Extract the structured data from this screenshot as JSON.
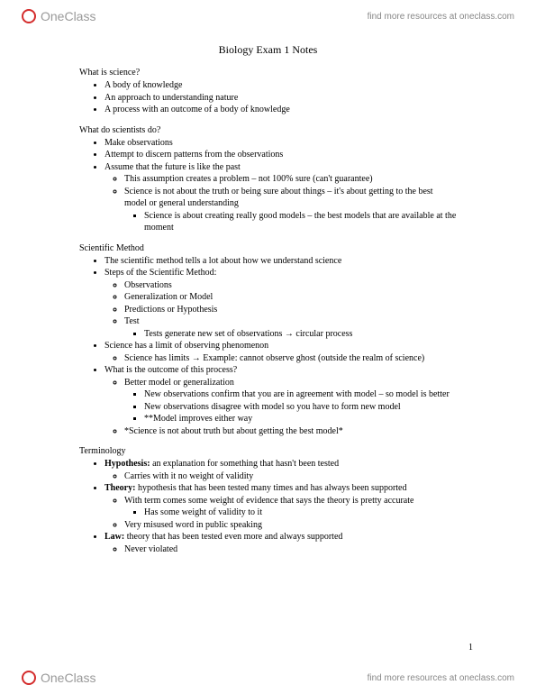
{
  "brand": {
    "name": "OneClass",
    "tagline": "find more resources at oneclass.com"
  },
  "title": "Biology Exam 1 Notes",
  "page_number": "1",
  "sections": [
    {
      "heading": "What is science?",
      "items": [
        {
          "t": "A body of knowledge"
        },
        {
          "t": "An approach to understanding nature"
        },
        {
          "t": "A process with an outcome of a body of knowledge"
        }
      ]
    },
    {
      "heading": "What do scientists do?",
      "items": [
        {
          "t": "Make observations"
        },
        {
          "t": "Attempt to discern patterns from the observations"
        },
        {
          "t": "Assume that the future is like the past",
          "sub": [
            {
              "t": "This assumption creates a problem – not 100% sure (can't guarantee)"
            },
            {
              "t": "Science is not about the truth or being sure about things – it's about getting to the best model or general understanding",
              "sub": [
                {
                  "t": "Science is about creating really good models – the best models that are available at the moment"
                }
              ]
            }
          ]
        }
      ]
    },
    {
      "heading": "Scientific Method",
      "items": [
        {
          "t": "The scientific method tells a lot about how we understand science"
        },
        {
          "t": "Steps of the Scientific Method:",
          "sub": [
            {
              "t": "Observations"
            },
            {
              "t": "Generalization or Model"
            },
            {
              "t": "Predictions or Hypothesis"
            },
            {
              "t": "Test",
              "sub": [
                {
                  "t": "Tests generate new set of observations → circular process"
                }
              ]
            }
          ]
        },
        {
          "t": "Science has a limit of observing phenomenon",
          "sub": [
            {
              "t": "Science has limits → Example: cannot observe ghost (outside the realm of science)"
            }
          ]
        },
        {
          "t": "What is the outcome of this process?",
          "sub": [
            {
              "t": "Better model or generalization",
              "sub": [
                {
                  "t": "New observations confirm that you are in agreement with model – so model is better"
                },
                {
                  "t": "New observations disagree with model so you have to form new model"
                },
                {
                  "t": "**Model improves either way"
                }
              ]
            },
            {
              "t": "*Science is not about truth but about getting the best model*"
            }
          ]
        }
      ]
    },
    {
      "heading": "Terminology",
      "items": [
        {
          "t_html": "<span class='bold'>Hypothesis:</span> an explanation for something that hasn't been tested",
          "sub": [
            {
              "t": "Carries with it no weight of validity"
            }
          ]
        },
        {
          "t_html": "<span class='bold'>Theory:</span> hypothesis that has been tested many times and has always been supported",
          "sub": [
            {
              "t": "With term comes some weight of evidence that says the theory is pretty accurate",
              "sub": [
                {
                  "t": "Has some weight of validity to it"
                }
              ]
            },
            {
              "t": "Very misused word in public speaking"
            }
          ]
        },
        {
          "t_html": "<span class='bold'>Law:</span> theory that has been tested even more and always supported",
          "sub": [
            {
              "t": "Never violated"
            }
          ]
        }
      ]
    }
  ]
}
